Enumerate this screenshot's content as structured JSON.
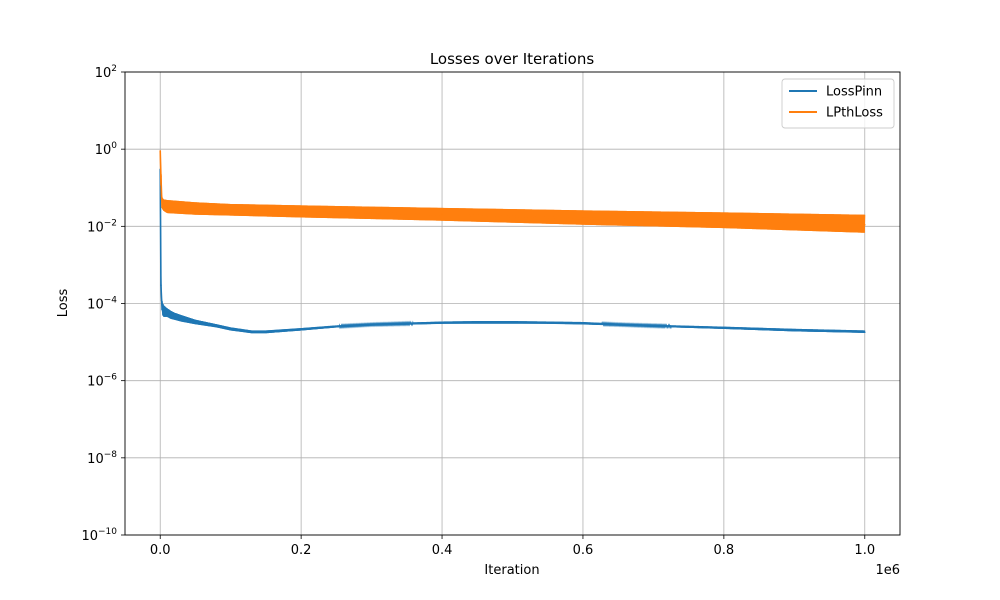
{
  "chart_data": {
    "type": "line",
    "title": "Losses over Iterations",
    "xlabel": "Iteration",
    "ylabel": "Loss",
    "x_offset_label": "1e6",
    "xscale": "linear",
    "yscale": "log",
    "xlim": [
      -50000,
      1050000
    ],
    "ylim": [
      1e-10,
      100
    ],
    "grid": true,
    "legend_position": "top-right",
    "x_ticks": [
      {
        "value": 0,
        "label": "0.0"
      },
      {
        "value": 200000,
        "label": "0.2"
      },
      {
        "value": 400000,
        "label": "0.4"
      },
      {
        "value": 600000,
        "label": "0.6"
      },
      {
        "value": 800000,
        "label": "0.8"
      },
      {
        "value": 1000000,
        "label": "1.0"
      }
    ],
    "y_ticks": [
      {
        "value": 1e-10,
        "base": "10",
        "exp": "−10"
      },
      {
        "value": 1e-08,
        "base": "10",
        "exp": "−8"
      },
      {
        "value": 1e-06,
        "base": "10",
        "exp": "−6"
      },
      {
        "value": 0.0001,
        "base": "10",
        "exp": "−4"
      },
      {
        "value": 0.01,
        "base": "10",
        "exp": "−2"
      },
      {
        "value": 1,
        "base": "10",
        "exp": "0"
      },
      {
        "value": 100,
        "base": "10",
        "exp": "2"
      }
    ],
    "series": [
      {
        "name": "LossPinn",
        "color": "#1f77b4",
        "x": [
          0,
          1000,
          2000,
          3000,
          5000,
          8000,
          10000,
          15000,
          20000,
          30000,
          50000,
          80000,
          100000,
          130000,
          150000,
          200000,
          250000,
          300000,
          400000,
          450000,
          500000,
          550000,
          600000,
          650000,
          700000,
          800000,
          900000,
          1000000
        ],
        "y": [
          0.3,
          0.0003,
          0.00012,
          8e-05,
          6.5e-05,
          6e-05,
          5.5e-05,
          5e-05,
          4.5e-05,
          4e-05,
          3.3e-05,
          2.6e-05,
          2.2e-05,
          1.8e-05,
          1.8e-05,
          2.1e-05,
          2.5e-05,
          2.8e-05,
          3.1e-05,
          3.2e-05,
          3.2e-05,
          3.1e-05,
          3e-05,
          2.8e-05,
          2.6e-05,
          2.3e-05,
          2e-05,
          1.8e-05
        ],
        "band_low": [
          0.3,
          0.00015,
          7e-05,
          5e-05,
          4.5e-05,
          4.5e-05,
          4.5e-05,
          4e-05,
          3.8e-05,
          3.4e-05,
          2.9e-05,
          2.4e-05,
          2e-05,
          1.7e-05,
          1.7e-05,
          2e-05,
          2.4e-05,
          2.7e-05,
          3e-05,
          3e-05,
          3e-05,
          3e-05,
          2.9e-05,
          2.7e-05,
          2.5e-05,
          2.2e-05,
          1.9e-05,
          1.75e-05
        ],
        "band_high": [
          0.3,
          0.0003,
          0.00016,
          0.00011,
          9e-05,
          8e-05,
          7.5e-05,
          6.5e-05,
          5.8e-05,
          5e-05,
          3.8e-05,
          2.9e-05,
          2.4e-05,
          2e-05,
          2e-05,
          2.3e-05,
          2.7e-05,
          3e-05,
          3.4e-05,
          3.5e-05,
          3.5e-05,
          3.4e-05,
          3.3e-05,
          3e-05,
          2.8e-05,
          2.5e-05,
          2.2e-05,
          2e-05
        ]
      },
      {
        "name": "LPthLoss",
        "color": "#ff7f0e",
        "x": [
          0,
          1000,
          2000,
          3000,
          5000,
          10000,
          50000,
          100000,
          200000,
          400000,
          600000,
          800000,
          1000000
        ],
        "y": [
          0.9,
          0.2,
          0.06,
          0.045,
          0.035,
          0.03,
          0.028,
          0.026,
          0.024,
          0.02,
          0.016,
          0.013,
          0.011
        ],
        "band_low": [
          0.9,
          0.05,
          0.03,
          0.028,
          0.025,
          0.022,
          0.02,
          0.019,
          0.017,
          0.014,
          0.011,
          0.009,
          0.0068
        ],
        "band_high": [
          0.9,
          0.6,
          0.06,
          0.055,
          0.05,
          0.048,
          0.042,
          0.038,
          0.035,
          0.03,
          0.026,
          0.023,
          0.02
        ]
      }
    ]
  }
}
